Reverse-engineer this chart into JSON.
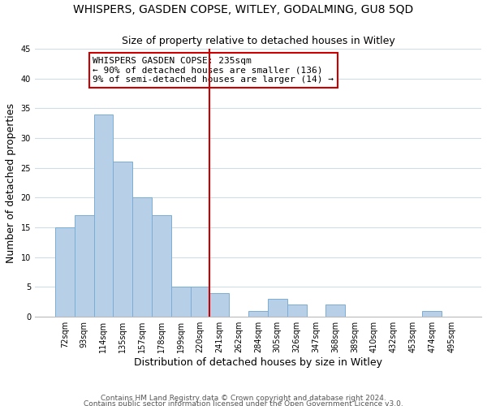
{
  "title": "WHISPERS, GASDEN COPSE, WITLEY, GODALMING, GU8 5QD",
  "subtitle": "Size of property relative to detached houses in Witley",
  "xlabel": "Distribution of detached houses by size in Witley",
  "ylabel": "Number of detached properties",
  "bar_labels": [
    "72sqm",
    "93sqm",
    "114sqm",
    "135sqm",
    "157sqm",
    "178sqm",
    "199sqm",
    "220sqm",
    "241sqm",
    "262sqm",
    "284sqm",
    "305sqm",
    "326sqm",
    "347sqm",
    "368sqm",
    "389sqm",
    "410sqm",
    "432sqm",
    "453sqm",
    "474sqm",
    "495sqm"
  ],
  "bar_values": [
    15,
    17,
    34,
    26,
    20,
    17,
    5,
    5,
    4,
    0,
    1,
    3,
    2,
    0,
    2,
    0,
    0,
    0,
    0,
    1,
    0
  ],
  "bar_color": "#b8cfe8",
  "bar_edge_color": "#7aaed6",
  "vline_color": "#cc0000",
  "ylim": [
    0,
    45
  ],
  "yticks": [
    0,
    5,
    10,
    15,
    20,
    25,
    30,
    35,
    40,
    45
  ],
  "annotation_title": "WHISPERS GASDEN COPSE: 235sqm",
  "annotation_line1": "← 90% of detached houses are smaller (136)",
  "annotation_line2": "9% of semi-detached houses are larger (14) →",
  "footer_line1": "Contains HM Land Registry data © Crown copyright and database right 2024.",
  "footer_line2": "Contains public sector information licensed under the Open Government Licence v3.0.",
  "title_fontsize": 10,
  "subtitle_fontsize": 9,
  "axis_label_fontsize": 9,
  "tick_fontsize": 7,
  "annotation_fontsize": 8,
  "footer_fontsize": 6.5,
  "background_color": "#ffffff",
  "grid_color": "#d0dce8"
}
